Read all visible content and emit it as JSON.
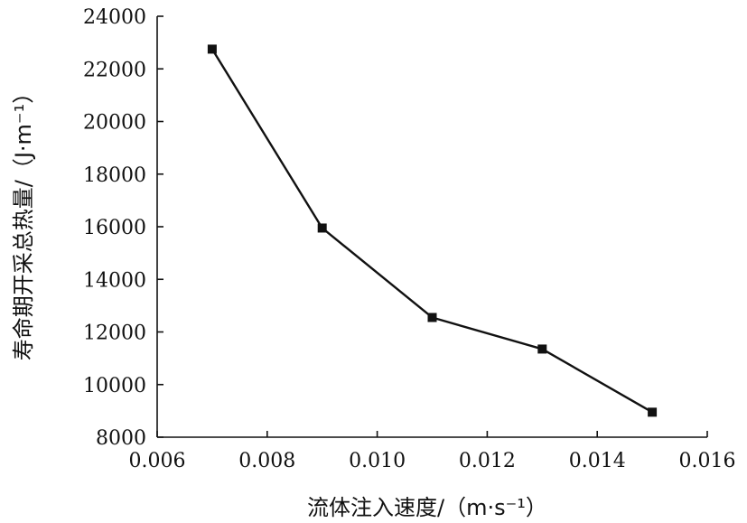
{
  "chart_data": {
    "type": "line",
    "title": "",
    "xlabel": "流体注入速度/（m·s⁻¹）",
    "ylabel": "寿命期开采总热量/（J·m⁻¹）",
    "xlim": [
      0.006,
      0.016
    ],
    "ylim": [
      8000,
      24000
    ],
    "xticks": [
      "0.006",
      "0.008",
      "0.010",
      "0.012",
      "0.014",
      "0.016"
    ],
    "yticks": [
      "8000",
      "10000",
      "12000",
      "14000",
      "16000",
      "18000",
      "20000",
      "22000",
      "24000"
    ],
    "grid": false,
    "series": [
      {
        "marker": "square",
        "x": [
          0.007,
          0.009,
          0.011,
          0.013,
          0.015
        ],
        "y": [
          22750,
          15950,
          12550,
          11350,
          8950
        ]
      }
    ]
  }
}
